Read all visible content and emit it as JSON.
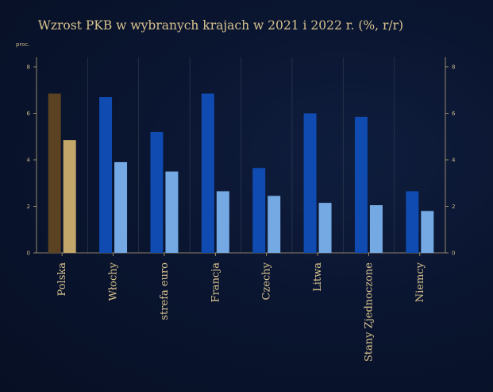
{
  "chart_data": {
    "type": "bar",
    "title": "Wzrost PKB w wybranych krajach w 2021 i 2022 r. (%, r/r)",
    "ylabel": "proc.",
    "ylim": [
      0,
      8
    ],
    "yticks": [
      0,
      2,
      4,
      6,
      8
    ],
    "grid": true,
    "categories": [
      "Polska",
      "Włochy",
      "strefa euro",
      "Francja",
      "Czechy",
      "Litwa",
      "Stany Zjednoczone",
      "Niemcy"
    ],
    "series": [
      {
        "values": [
          6.85,
          6.7,
          5.2,
          6.85,
          3.65,
          6.0,
          5.85,
          2.65
        ]
      },
      {
        "values": [
          4.85,
          3.9,
          3.5,
          2.65,
          2.45,
          2.15,
          2.05,
          1.8
        ]
      }
    ],
    "colors": {
      "series_default": [
        "#0f4bb0",
        "#74a9e3"
      ],
      "highlight_category": "Polska",
      "highlight": [
        "#5b4222",
        "#c2a66a"
      ]
    }
  }
}
